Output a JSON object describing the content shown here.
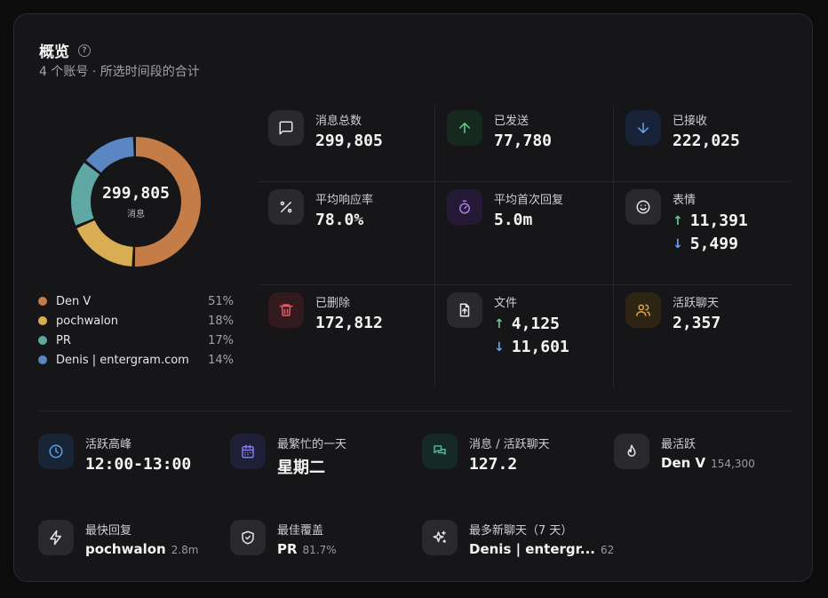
{
  "header": {
    "title": "概览",
    "help_icon": "?",
    "subtitle": "4 个账号 · 所选时间段的合计"
  },
  "donut": {
    "total": "299,805",
    "label": "消息",
    "segments": [
      {
        "name": "Den V",
        "percent": 51,
        "color": "#c47d47"
      },
      {
        "name": "pochwalon",
        "percent": 18,
        "color": "#d9ae52"
      },
      {
        "name": "PR",
        "percent": 17,
        "color": "#5fa8a3"
      },
      {
        "name": "Denis | entergram.com",
        "percent": 14,
        "color": "#5b86c4"
      }
    ]
  },
  "legend": [
    {
      "name": "Den V",
      "pct": "51%",
      "color": "#c47d47"
    },
    {
      "name": "pochwalon",
      "pct": "18%",
      "color": "#d9ae52"
    },
    {
      "name": "PR",
      "pct": "17%",
      "color": "#5fa8a3"
    },
    {
      "name": "Denis | entergram.com",
      "pct": "14%",
      "color": "#5b86c4"
    }
  ],
  "stats": {
    "total_messages": {
      "label": "消息总数",
      "value": "299,805",
      "icon": "message-icon"
    },
    "sent": {
      "label": "已发送",
      "value": "77,780",
      "icon": "arrow-up-icon"
    },
    "received": {
      "label": "已接收",
      "value": "222,025",
      "icon": "arrow-down-icon"
    },
    "response_rate": {
      "label": "平均响应率",
      "value": "78.0%",
      "icon": "percent-icon"
    },
    "first_reply": {
      "label": "平均首次回复",
      "value": "5.0m",
      "icon": "timer-icon"
    },
    "reactions": {
      "label": "表情",
      "up": "11,391",
      "down": "5,499",
      "icon": "smile-icon"
    },
    "deleted": {
      "label": "已删除",
      "value": "172,812",
      "icon": "trash-icon"
    },
    "files": {
      "label": "文件",
      "up": "4,125",
      "down": "11,601",
      "icon": "file-upload-icon"
    },
    "active_chats": {
      "label": "活跃聊天",
      "value": "2,357",
      "icon": "users-icon"
    }
  },
  "bottom": {
    "peak": {
      "label": "活跃高峰",
      "value": "12:00-13:00",
      "icon": "clock-icon"
    },
    "busiest_day": {
      "label": "最繁忙的一天",
      "value": "星期二",
      "icon": "calendar-icon"
    },
    "msgs_per_chat": {
      "label": "消息 / 活跃聊天",
      "value": "127.2",
      "icon": "chat-bubbles-icon"
    },
    "most_active": {
      "label": "最活跃",
      "value": "Den V",
      "sub": "154,300",
      "icon": "flame-icon"
    },
    "fastest_reply": {
      "label": "最快回复",
      "value": "pochwalon",
      "sub": "2.8m",
      "icon": "bolt-icon"
    },
    "best_coverage": {
      "label": "最佳覆盖",
      "value": "PR",
      "sub": "81.7%",
      "icon": "shield-check-icon"
    },
    "most_new_chats": {
      "label": "最多新聊天（7 天）",
      "value": "Denis | entergr...",
      "sub": "62",
      "icon": "sparkles-icon"
    }
  },
  "colors": {
    "up": "#5fd08a",
    "down": "#6ea2ee",
    "card_bg": "#161618"
  }
}
